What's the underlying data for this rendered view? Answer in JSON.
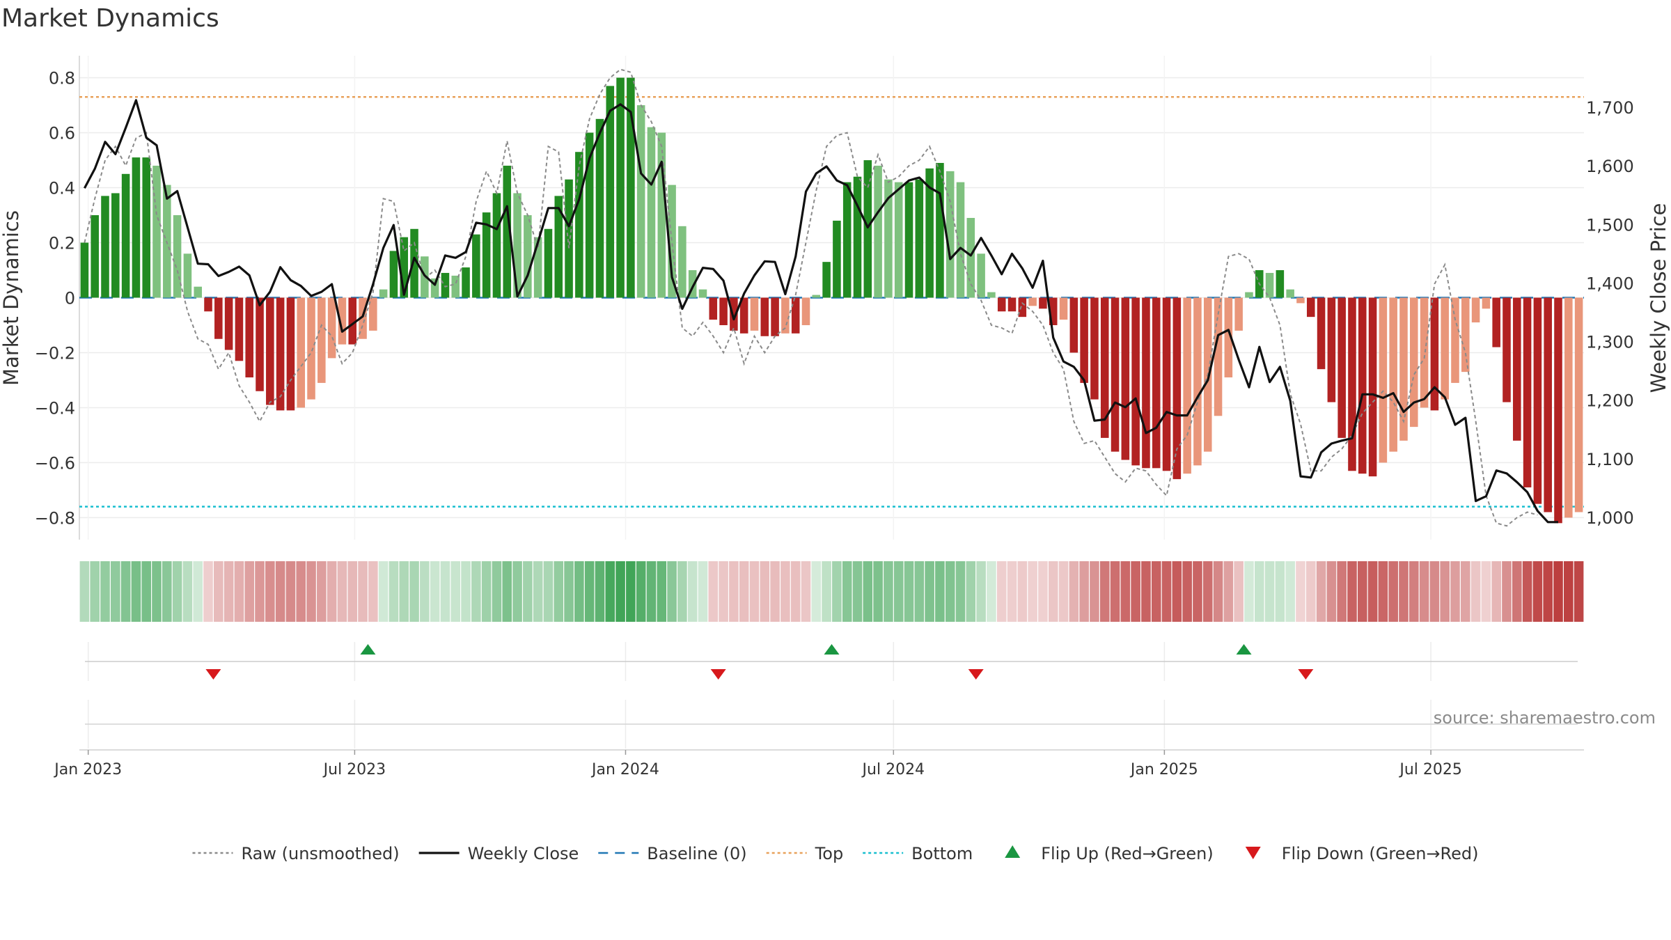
{
  "chart_data": {
    "type": "bar",
    "title": "Market Dynamics",
    "ylabel_left": "Market Dynamics",
    "ylabel_right": "Weekly Close Price",
    "ylim_left": [
      -0.88,
      0.88
    ],
    "ylim_right": [
      962,
      1788
    ],
    "left_ticks": [
      0.8,
      0.6,
      0.4,
      0.2,
      0,
      -0.2,
      -0.4,
      -0.6,
      -0.8
    ],
    "left_tick_labels": [
      "0.8",
      "0.6",
      "0.4",
      "0.2",
      "0",
      "−0.2",
      "−0.4",
      "−0.6",
      "−0.8"
    ],
    "right_ticks": [
      1700,
      1600,
      1500,
      1400,
      1300,
      1200,
      1100,
      1000
    ],
    "right_tick_labels": [
      "1,700",
      "1,600",
      "1,500",
      "1,400",
      "1,300",
      "1,200",
      "1,100",
      "1,000"
    ],
    "x_start": "2022-12-26",
    "x_end": "2025-10-13",
    "x_ticks": [
      "2023-01-01",
      "2023-07-01",
      "2024-01-01",
      "2024-07-01",
      "2025-01-01",
      "2025-07-01"
    ],
    "x_tick_labels": [
      "Jan 2023",
      "Jul 2023",
      "Jan 2024",
      "Jul 2024",
      "Jan 2025",
      "Jul 2025"
    ],
    "grid": true,
    "top_level": 0.73,
    "bottom_level": -0.76,
    "baseline": 0,
    "colors": {
      "green_strong": "#228B22",
      "green_weak": "#7FC17F",
      "red_strong": "#B22222",
      "red_weak": "#E9967A",
      "raw": "#8a8a8a",
      "close": "#111111",
      "baseline": "#1f77b4",
      "top": "#e8a15a",
      "bottom": "#17becf",
      "flip_up": "#1a9641",
      "flip_down": "#d7191c"
    },
    "dynamics": [
      0.2,
      0.3,
      0.37,
      0.38,
      0.45,
      0.51,
      0.51,
      0.48,
      0.41,
      0.3,
      0.16,
      0.04,
      -0.05,
      -0.15,
      -0.19,
      -0.23,
      -0.29,
      -0.34,
      -0.39,
      -0.41,
      -0.41,
      -0.4,
      -0.37,
      -0.31,
      -0.22,
      -0.17,
      -0.17,
      -0.15,
      -0.12,
      0.03,
      0.17,
      0.22,
      0.25,
      0.15,
      0.07,
      0.09,
      0.08,
      0.11,
      0.23,
      0.31,
      0.38,
      0.48,
      0.38,
      0.3,
      0.22,
      0.25,
      0.37,
      0.43,
      0.53,
      0.6,
      0.65,
      0.77,
      0.8,
      0.8,
      0.7,
      0.62,
      0.6,
      0.41,
      0.26,
      0.1,
      0.03,
      -0.08,
      -0.1,
      -0.12,
      -0.13,
      -0.12,
      -0.14,
      -0.14,
      -0.13,
      -0.13,
      -0.1,
      0.01,
      0.13,
      0.28,
      0.42,
      0.44,
      0.5,
      0.48,
      0.43,
      0.42,
      0.42,
      0.43,
      0.47,
      0.49,
      0.46,
      0.42,
      0.29,
      0.16,
      0.02,
      -0.05,
      -0.05,
      -0.07,
      -0.03,
      -0.04,
      -0.1,
      -0.08,
      -0.2,
      -0.31,
      -0.37,
      -0.51,
      -0.56,
      -0.59,
      -0.61,
      -0.62,
      -0.62,
      -0.63,
      -0.66,
      -0.64,
      -0.61,
      -0.56,
      -0.43,
      -0.29,
      -0.12,
      0.02,
      0.1,
      0.09,
      0.1,
      0.03,
      -0.02,
      -0.07,
      -0.26,
      -0.38,
      -0.51,
      -0.63,
      -0.64,
      -0.65,
      -0.6,
      -0.56,
      -0.52,
      -0.47,
      -0.4,
      -0.41,
      -0.37,
      -0.31,
      -0.27,
      -0.09,
      -0.04,
      -0.18,
      -0.38,
      -0.52,
      -0.69,
      -0.75,
      -0.78,
      -0.82,
      -0.8,
      -0.78
    ],
    "raw": [
      0.2,
      0.36,
      0.5,
      0.55,
      0.48,
      0.58,
      0.6,
      0.3,
      0.2,
      0.1,
      -0.05,
      -0.15,
      -0.17,
      -0.26,
      -0.2,
      -0.32,
      -0.38,
      -0.45,
      -0.38,
      -0.36,
      -0.3,
      -0.25,
      -0.2,
      -0.1,
      -0.14,
      -0.24,
      -0.2,
      -0.1,
      0.02,
      0.36,
      0.35,
      0.17,
      0.2,
      0.07,
      0.1,
      0.04,
      0.05,
      0.15,
      0.35,
      0.46,
      0.38,
      0.57,
      0.38,
      0.3,
      0.18,
      0.55,
      0.53,
      0.18,
      0.48,
      0.65,
      0.74,
      0.8,
      0.83,
      0.82,
      0.7,
      0.64,
      0.55,
      0.2,
      -0.11,
      -0.14,
      -0.09,
      -0.14,
      -0.2,
      -0.11,
      -0.24,
      -0.14,
      -0.2,
      -0.14,
      -0.11,
      0.01,
      0.2,
      0.39,
      0.55,
      0.59,
      0.6,
      0.44,
      0.4,
      0.52,
      0.42,
      0.44,
      0.48,
      0.5,
      0.55,
      0.46,
      0.35,
      0.16,
      0.05,
      -0.01,
      -0.1,
      -0.11,
      -0.13,
      -0.02,
      -0.05,
      -0.1,
      -0.2,
      -0.26,
      -0.45,
      -0.53,
      -0.52,
      -0.58,
      -0.64,
      -0.67,
      -0.62,
      -0.63,
      -0.68,
      -0.72,
      -0.55,
      -0.5,
      -0.38,
      -0.28,
      -0.06,
      0.15,
      0.16,
      0.14,
      0.05,
      0.0,
      -0.1,
      -0.35,
      -0.46,
      -0.63,
      -0.63,
      -0.58,
      -0.55,
      -0.5,
      -0.42,
      -0.38,
      -0.34,
      -0.38,
      -0.45,
      -0.28,
      -0.22,
      0.05,
      0.12,
      -0.08,
      -0.2,
      -0.45,
      -0.72,
      -0.82,
      -0.83,
      -0.8,
      -0.78,
      -0.79
    ],
    "close": [
      1562,
      1595,
      1641,
      1620,
      1665,
      1712,
      1648,
      1635,
      1544,
      1557,
      1495,
      1433,
      1432,
      1412,
      1419,
      1428,
      1413,
      1362,
      1385,
      1427,
      1405,
      1395,
      1378,
      1385,
      1398,
      1317,
      1330,
      1343,
      1398,
      1460,
      1499,
      1380,
      1443,
      1413,
      1397,
      1447,
      1443,
      1453,
      1503,
      1500,
      1492,
      1531,
      1377,
      1413,
      1470,
      1528,
      1528,
      1497,
      1543,
      1613,
      1656,
      1694,
      1705,
      1692,
      1587,
      1568,
      1607,
      1410,
      1356,
      1393,
      1426,
      1424,
      1404,
      1338,
      1382,
      1413,
      1437,
      1436,
      1381,
      1445,
      1556,
      1587,
      1599,
      1575,
      1567,
      1532,
      1495,
      1521,
      1545,
      1560,
      1575,
      1580,
      1563,
      1553,
      1441,
      1460,
      1447,
      1477,
      1447,
      1415,
      1450,
      1425,
      1392,
      1438,
      1307,
      1266,
      1257,
      1234,
      1165,
      1167,
      1196,
      1188,
      1203,
      1144,
      1153,
      1180,
      1174,
      1174,
      1205,
      1234,
      1311,
      1320,
      1269,
      1222,
      1291,
      1231,
      1257,
      1199,
      1070,
      1068,
      1111,
      1126,
      1131,
      1135,
      1210,
      1210,
      1204,
      1212,
      1180,
      1196,
      1202,
      1222,
      1205,
      1158,
      1170,
      1028,
      1036,
      1080,
      1075,
      1060,
      1043,
      1011,
      992,
      992
    ],
    "flip_up_dates": [
      "2023-07-10",
      "2024-05-20",
      "2025-02-24"
    ],
    "flip_down_dates": [
      "2023-03-27",
      "2024-03-04",
      "2024-08-26",
      "2025-04-07"
    ],
    "source": "source: sharemaestro.com",
    "legend": [
      {
        "key": "raw",
        "label": "Raw (unsmoothed)",
        "style": "dotted-line"
      },
      {
        "key": "close",
        "label": "Weekly Close",
        "style": "solid-line"
      },
      {
        "key": "baseline",
        "label": "Baseline (0)",
        "style": "dashed-line"
      },
      {
        "key": "top",
        "label": "Top",
        "style": "dotted-line"
      },
      {
        "key": "bottom",
        "label": "Bottom",
        "style": "dotted-line"
      },
      {
        "key": "flip_up",
        "label": "Flip Up (Red→Green)",
        "style": "triangle-up"
      },
      {
        "key": "flip_down",
        "label": "Flip Down (Green→Red)",
        "style": "triangle-down"
      }
    ]
  }
}
